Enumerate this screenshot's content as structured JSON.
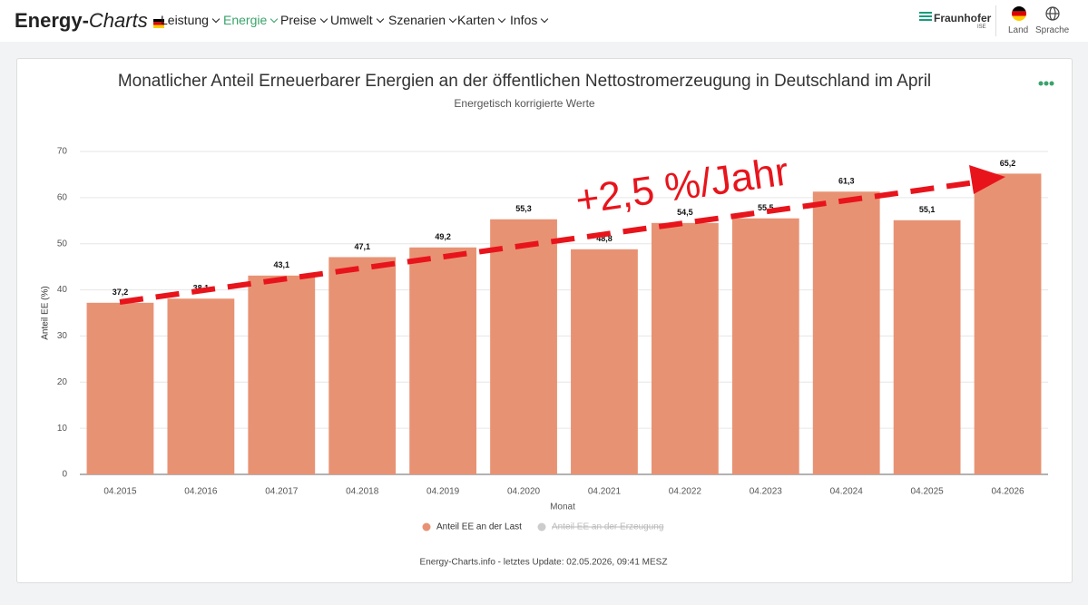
{
  "header": {
    "logo_bold": "Energy-",
    "logo_italic": "Charts",
    "nav": [
      "Leistung",
      "Energie",
      "Preise",
      "Umwelt",
      "Szenarien",
      "Karten",
      "Infos"
    ],
    "brand": "Fraunhofer",
    "brand_sub": "ISE",
    "country": "Land",
    "language": "Sprache"
  },
  "chart_data": {
    "type": "bar",
    "title": "Monatlicher Anteil Erneuerbarer Energien an der öffentlichen Nettostromerzeugung in Deutschland im April",
    "subtitle": "Energetisch korrigierte Werte",
    "x_label": "Monat",
    "y_label": "Anteil EE (%)",
    "categories": [
      "04.2015",
      "04.2016",
      "04.2017",
      "04.2018",
      "04.2019",
      "04.2020",
      "04.2021",
      "04.2022",
      "04.2023",
      "04.2024",
      "04.2025",
      "04.2026"
    ],
    "series": [
      {
        "name": "Anteil EE an der Last",
        "color": "#e89274",
        "values": [
          37.2,
          38.1,
          43.1,
          47.1,
          49.2,
          55.3,
          48.8,
          54.5,
          55.5,
          61.3,
          55.1,
          65.2
        ],
        "value_labels": [
          "37,2",
          "38,1",
          "43,1",
          "47,1",
          "49,2",
          "55,3",
          "48,8",
          "54,5",
          "55,5",
          "61,3",
          "55,1",
          "65,2"
        ]
      },
      {
        "name": "Anteil EE an der Erzeugung",
        "color": "#cccccc",
        "hidden": true
      }
    ],
    "ylim": [
      0,
      70
    ],
    "yticks": [
      0,
      10,
      20,
      30,
      40,
      50,
      60,
      70
    ],
    "grid": true,
    "annotation": "+2,5 %/Jahr",
    "footer": "Energy-Charts.info - letztes Update: 02.05.2026, 09:41 MESZ"
  }
}
